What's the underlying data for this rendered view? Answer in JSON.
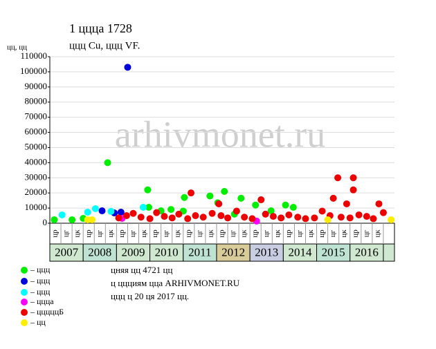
{
  "chart_data": {
    "type": "scatter",
    "title": "1 ццца 1728",
    "subtitle": "ццц Cu, ццц VF.",
    "ylabel": "цц, цц",
    "watermark": "arhivmonet.ru",
    "ylim": [
      0,
      110000
    ],
    "yticks": [
      0,
      10000,
      20000,
      30000,
      40000,
      50000,
      60000,
      70000,
      80000,
      90000,
      100000,
      110000
    ],
    "xlim": [
      0,
      31
    ],
    "grid": true,
    "years": [
      "2007",
      "2008",
      "2009",
      "2010",
      "2011",
      "2012",
      "2013",
      "2014",
      "2015",
      "2016"
    ],
    "year_colors": [
      "#cfe8cf",
      "#bfe3d3",
      "#cfe8cf",
      "#cfe8cf",
      "#bfe3d3",
      "#d8cd9a",
      "#c9cde2",
      "#cfe8cf",
      "#bfe3d3",
      "#cfe8cf"
    ],
    "sub_labels": [
      "цр",
      "цг",
      "цк",
      "цр",
      "цг",
      "цк",
      "цр",
      "цг",
      "цк",
      "цр",
      "цг",
      "цк",
      "цр",
      "цг",
      "цк",
      "цр",
      "цг",
      "цк",
      "цр",
      "цг",
      "цк",
      "цр",
      "цг",
      "цк",
      "цр",
      "цг",
      "цк",
      "цр",
      "цг",
      "цк"
    ],
    "series": [
      {
        "name": "– ццц",
        "color": "#00ee00",
        "x": [
          0.4,
          2.0,
          3.0,
          5.2,
          8.8,
          8.9,
          10.0,
          10.9,
          12.1,
          12.0,
          14.4,
          15.7,
          15.1,
          17.2,
          18.5,
          19.9,
          21.2,
          21.9,
          16.6
        ],
        "values": [
          2300,
          2300,
          3200,
          40000,
          22000,
          10500,
          8200,
          9100,
          17000,
          8000,
          18000,
          21000,
          13500,
          16500,
          12000,
          8200,
          12000,
          10500,
          6000
        ]
      },
      {
        "name": "– ццц",
        "color": "#0000dd",
        "x": [
          7.0,
          4.7,
          5.8,
          6.4
        ],
        "values": [
          103000,
          8200,
          6800,
          7300
        ]
      },
      {
        "name": "– ццц",
        "color": "#00ffff",
        "x": [
          1.1,
          4.1,
          8.4,
          3.4,
          5.5
        ],
        "values": [
          5500,
          9600,
          10500,
          7300,
          7800
        ]
      },
      {
        "name": "– ццца",
        "color": "#ff00ff",
        "x": [
          6.5,
          18.6
        ],
        "values": [
          3200,
          1400
        ]
      },
      {
        "name": "– цццццБ",
        "color": "#ee0000",
        "x": [
          12.7,
          15.2,
          19.0,
          25.9,
          27.3,
          27.3,
          25.5,
          26.7,
          29.6,
          6.2,
          6.9,
          7.5,
          8.2,
          9.0,
          9.6,
          10.3,
          11.0,
          11.6,
          12.4,
          13.1,
          13.8,
          14.6,
          15.4,
          16.0,
          16.8,
          17.5,
          18.2,
          19.4,
          20.1,
          20.8,
          21.5,
          22.3,
          23.0,
          23.8,
          24.5,
          25.2,
          26.2,
          27.0,
          27.8,
          28.5,
          29.1,
          30.0
        ],
        "values": [
          20000,
          12800,
          15500,
          30000,
          30000,
          22000,
          16500,
          12800,
          12800,
          3500,
          5000,
          6500,
          4000,
          3000,
          7000,
          4500,
          3500,
          6000,
          3000,
          5000,
          4000,
          6500,
          5000,
          3500,
          8000,
          4000,
          3000,
          6000,
          4500,
          3500,
          5500,
          4000,
          3000,
          3500,
          8000,
          5000,
          4000,
          3500,
          5500,
          4500,
          3000,
          7000
        ]
      },
      {
        "name": "– цц",
        "color": "#ffee00",
        "x": [
          3.4,
          3.8,
          25.0,
          30.7
        ],
        "values": [
          2300,
          2300,
          2300,
          2300
        ]
      }
    ],
    "notes": [
      "цняя цц 4721 цц",
      "ц ццциям цца ARHIVMONET.RU",
      "ццц ц 20 ця 2017 цц."
    ]
  }
}
